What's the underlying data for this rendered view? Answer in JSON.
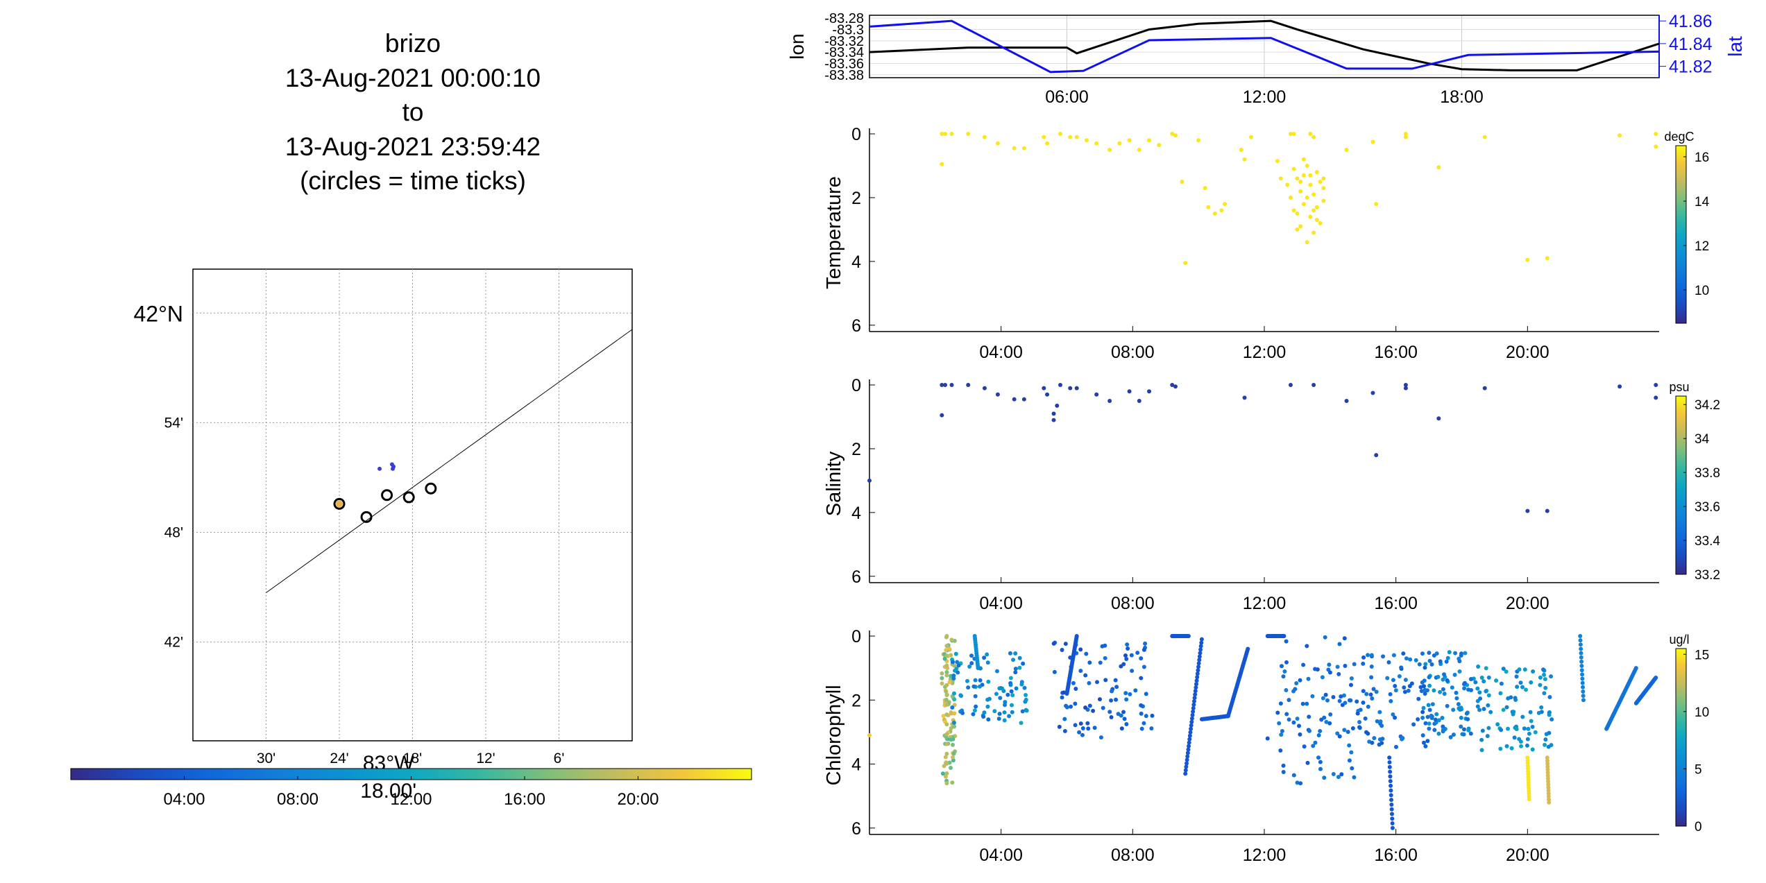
{
  "title_lines": [
    "brizo",
    "13-Aug-2021 00:00:10",
    "to",
    "13-Aug-2021 23:59:42",
    "(circles = time ticks)"
  ],
  "chart_data": [
    {
      "type": "scatter",
      "id": "track_map",
      "lon_ticks": [
        "30'",
        "24'",
        "18'",
        "12'",
        "6'"
      ],
      "lat_ticks": [
        "42°N",
        "54'",
        "48'",
        "42'"
      ],
      "lon_center_label": "83°W",
      "lon_extra_label": "18.00'",
      "track_line": [
        [
          -83.5,
          41.745
        ],
        [
          -83.0,
          41.985
        ]
      ],
      "time_tick_circles": [
        [
          -83.4,
          41.826
        ],
        [
          -83.363,
          41.814
        ],
        [
          -83.335,
          41.834
        ],
        [
          -83.305,
          41.832
        ],
        [
          -83.275,
          41.84
        ]
      ],
      "colored_circle": [
        -83.4,
        41.826
      ],
      "sample_points": [
        [
          -83.345,
          41.858
        ],
        [
          -83.328,
          41.862
        ],
        [
          -83.327,
          41.858
        ],
        [
          -83.326,
          41.86
        ]
      ],
      "xlim": [
        -83.6,
        -83.0
      ],
      "ylim": [
        41.61,
        42.04
      ],
      "colorbar_ticks": [
        "04:00",
        "08:00",
        "12:00",
        "16:00",
        "20:00"
      ]
    },
    {
      "type": "line",
      "id": "lon_lat",
      "ylabel_left": "lon",
      "ylabel_right": "lat",
      "left_ticks": [
        "-83.28",
        "-83.3",
        "-83.32",
        "-83.34",
        "-83.36",
        "-83.38"
      ],
      "right_ticks": [
        "41.86",
        "41.84",
        "41.82"
      ],
      "x_ticks": [
        "06:00",
        "12:00",
        "18:00"
      ],
      "xlim": [
        0,
        24
      ],
      "ylim_left": [
        -83.385,
        -83.275
      ],
      "ylim_right": [
        41.81,
        41.865
      ],
      "series": [
        {
          "name": "lon",
          "color": "#000000",
          "x": [
            0,
            3,
            6,
            6.3,
            8.5,
            10,
            12.2,
            13,
            15,
            17,
            18,
            19.5,
            21.5,
            24
          ],
          "y": [
            -83.34,
            -83.332,
            -83.332,
            -83.342,
            -83.3,
            -83.29,
            -83.285,
            -83.3,
            -83.335,
            -83.36,
            -83.37,
            -83.372,
            -83.372,
            -83.325
          ]
        },
        {
          "name": "lat",
          "color": "#1010ee",
          "x": [
            0,
            2.5,
            5.5,
            6.5,
            8.5,
            12.2,
            14.5,
            16.5,
            18.2,
            24
          ],
          "y": [
            41.855,
            41.86,
            41.815,
            41.816,
            41.843,
            41.845,
            41.818,
            41.818,
            41.83,
            41.833
          ]
        }
      ]
    },
    {
      "type": "scatter",
      "id": "temperature",
      "ylabel": "Temperature",
      "colorbar_unit": "degC",
      "colorbar_ticks": [
        "16",
        "14",
        "12",
        "10"
      ],
      "clim": [
        8.5,
        16.5
      ],
      "y_ticks": [
        "0",
        "2",
        "4",
        "6"
      ],
      "x_ticks": [
        "04:00",
        "08:00",
        "12:00",
        "16:00",
        "20:00"
      ],
      "xlim": [
        0,
        24
      ],
      "ylim": [
        6.2,
        0
      ],
      "points": [
        [
          2.2,
          0.0
        ],
        [
          2.3,
          0.0
        ],
        [
          2.5,
          0.0
        ],
        [
          2.2,
          0.95
        ],
        [
          3.0,
          0.0
        ],
        [
          3.5,
          0.1
        ],
        [
          3.9,
          0.3
        ],
        [
          4.4,
          0.45
        ],
        [
          4.7,
          0.45
        ],
        [
          5.3,
          0.1
        ],
        [
          5.4,
          0.3
        ],
        [
          5.8,
          0.0
        ],
        [
          6.1,
          0.1
        ],
        [
          6.3,
          0.1
        ],
        [
          6.6,
          0.2
        ],
        [
          6.9,
          0.3
        ],
        [
          7.3,
          0.5
        ],
        [
          7.6,
          0.3
        ],
        [
          7.9,
          0.2
        ],
        [
          8.2,
          0.5
        ],
        [
          8.5,
          0.2
        ],
        [
          8.8,
          0.35
        ],
        [
          9.2,
          0.0
        ],
        [
          9.3,
          0.05
        ],
        [
          9.5,
          1.5
        ],
        [
          9.6,
          4.05
        ],
        [
          10.0,
          0.2
        ],
        [
          10.2,
          1.7
        ],
        [
          10.3,
          2.3
        ],
        [
          10.5,
          2.5
        ],
        [
          10.7,
          2.4
        ],
        [
          10.8,
          2.2
        ],
        [
          11.3,
          0.5
        ],
        [
          11.4,
          0.8
        ],
        [
          11.6,
          0.1
        ],
        [
          12.4,
          0.85
        ],
        [
          12.5,
          1.4
        ],
        [
          12.8,
          0.0
        ],
        [
          12.9,
          0.0
        ],
        [
          13.4,
          0.0
        ],
        [
          13.5,
          0.1
        ],
        [
          12.7,
          1.6
        ],
        [
          12.8,
          2.0
        ],
        [
          12.9,
          1.1
        ],
        [
          13.0,
          2.5
        ],
        [
          13.0,
          1.4
        ],
        [
          13.1,
          1.8
        ],
        [
          13.1,
          2.9
        ],
        [
          13.2,
          1.3
        ],
        [
          13.2,
          2.2
        ],
        [
          13.3,
          3.4
        ],
        [
          13.3,
          1.0
        ],
        [
          13.4,
          1.6
        ],
        [
          13.4,
          2.6
        ],
        [
          13.5,
          1.9
        ],
        [
          13.5,
          3.1
        ],
        [
          13.6,
          1.2
        ],
        [
          13.6,
          2.3
        ],
        [
          13.7,
          1.5
        ],
        [
          13.7,
          2.8
        ],
        [
          13.8,
          1.7
        ],
        [
          13.8,
          2.1
        ],
        [
          13.2,
          0.8
        ],
        [
          13.0,
          3.0
        ],
        [
          12.9,
          2.4
        ],
        [
          13.3,
          2.0
        ],
        [
          13.5,
          2.4
        ],
        [
          13.6,
          2.7
        ],
        [
          13.8,
          1.4
        ],
        [
          13.1,
          1.5
        ],
        [
          13.4,
          1.3
        ],
        [
          14.5,
          0.5
        ],
        [
          15.3,
          0.25
        ],
        [
          15.4,
          2.2
        ],
        [
          16.3,
          0.0
        ],
        [
          16.3,
          0.1
        ],
        [
          17.3,
          1.05
        ],
        [
          18.7,
          0.1
        ],
        [
          20.0,
          3.95
        ],
        [
          20.6,
          3.9
        ],
        [
          22.8,
          0.05
        ],
        [
          23.9,
          0.0
        ],
        [
          23.9,
          0.4
        ]
      ]
    },
    {
      "type": "scatter",
      "id": "salinity",
      "ylabel": "Salinity",
      "colorbar_unit": "psu",
      "colorbar_ticks": [
        "34.2",
        "34",
        "33.8",
        "33.6",
        "33.4",
        "33.2"
      ],
      "clim": [
        33.2,
        34.25
      ],
      "y_ticks": [
        "0",
        "2",
        "4",
        "6"
      ],
      "x_ticks": [
        "04:00",
        "08:00",
        "12:00",
        "16:00",
        "20:00"
      ],
      "xlim": [
        0,
        24
      ],
      "ylim": [
        6.2,
        0
      ],
      "points": [
        [
          0.0,
          3.0
        ],
        [
          2.2,
          0.0
        ],
        [
          2.2,
          0.95
        ],
        [
          2.3,
          0.0
        ],
        [
          2.5,
          0.0
        ],
        [
          3.0,
          0.0
        ],
        [
          3.5,
          0.1
        ],
        [
          3.9,
          0.3
        ],
        [
          4.4,
          0.45
        ],
        [
          4.7,
          0.45
        ],
        [
          5.3,
          0.1
        ],
        [
          5.4,
          0.3
        ],
        [
          5.6,
          0.9
        ],
        [
          5.6,
          1.1
        ],
        [
          5.7,
          0.65
        ],
        [
          5.8,
          0.0
        ],
        [
          6.1,
          0.1
        ],
        [
          6.3,
          0.1
        ],
        [
          6.9,
          0.3
        ],
        [
          7.3,
          0.5
        ],
        [
          7.9,
          0.2
        ],
        [
          8.2,
          0.5
        ],
        [
          8.5,
          0.2
        ],
        [
          9.2,
          0.0
        ],
        [
          9.3,
          0.05
        ],
        [
          11.4,
          0.4
        ],
        [
          12.8,
          0.0
        ],
        [
          13.5,
          0.0
        ],
        [
          14.5,
          0.5
        ],
        [
          15.3,
          0.25
        ],
        [
          15.4,
          2.2
        ],
        [
          16.3,
          0.0
        ],
        [
          16.3,
          0.1
        ],
        [
          17.3,
          1.05
        ],
        [
          18.7,
          0.1
        ],
        [
          20.0,
          3.95
        ],
        [
          20.6,
          3.95
        ],
        [
          22.8,
          0.05
        ],
        [
          23.9,
          0.0
        ],
        [
          23.9,
          0.4
        ]
      ]
    },
    {
      "type": "scatter",
      "id": "chlorophyll",
      "ylabel": "Chlorophyll",
      "colorbar_unit": "ug/l",
      "colorbar_ticks": [
        "15",
        "10",
        "5",
        "0"
      ],
      "clim": [
        0,
        15.5
      ],
      "y_ticks": [
        "0",
        "2",
        "4",
        "6"
      ],
      "x_ticks": [
        "04:00",
        "08:00",
        "12:00",
        "16:00",
        "20:00"
      ],
      "xlim": [
        0,
        24
      ],
      "ylim": [
        6.2,
        0
      ],
      "clusters": [
        {
          "x": [
            2.2,
            2.6
          ],
          "y": [
            0.0,
            4.6
          ],
          "c": [
            9,
            14
          ]
        },
        {
          "x": [
            2.5,
            4.8
          ],
          "y": [
            0.5,
            2.8
          ],
          "c": [
            3,
            8
          ]
        },
        {
          "x": [
            5.6,
            8.6
          ],
          "y": [
            0.2,
            3.2
          ],
          "c": [
            1.5,
            4
          ]
        },
        {
          "x": [
            12.4,
            14.8
          ],
          "y": [
            0.0,
            4.6
          ],
          "c": [
            2,
            5
          ]
        },
        {
          "x": [
            14.8,
            17.3
          ],
          "y": [
            0.5,
            3.5
          ],
          "c": [
            2,
            5
          ]
        },
        {
          "x": [
            16.8,
            18.5
          ],
          "y": [
            0.5,
            3.2
          ],
          "c": [
            3,
            7
          ]
        },
        {
          "x": [
            18.5,
            20.8
          ],
          "y": [
            1.0,
            3.6
          ],
          "c": [
            4,
            8
          ]
        }
      ],
      "point_columns": [
        {
          "x": [
            2.35,
            2.35
          ],
          "y": [
            0.0,
            4.6
          ],
          "c": 12
        },
        {
          "x": [
            15.8,
            15.9
          ],
          "y": [
            3.8,
            6.0
          ],
          "c": 2
        },
        {
          "x": [
            20.0,
            20.05
          ],
          "y": [
            3.8,
            5.1
          ],
          "c": 15
        },
        {
          "x": [
            20.6,
            20.65
          ],
          "y": [
            3.8,
            5.2
          ],
          "c": 13
        },
        {
          "x": [
            3.2,
            3.3
          ],
          "y": [
            0.0,
            1.0
          ],
          "c": 6
        },
        {
          "x": [
            21.6,
            21.7
          ],
          "y": [
            0.0,
            2.0
          ],
          "c": 5
        }
      ],
      "line_segments": [
        {
          "x": [
            9.6,
            10.1
          ],
          "y": [
            4.3,
            0.1
          ],
          "c": 2
        },
        {
          "x": [
            10.1,
            10.9
          ],
          "y": [
            2.6,
            2.5
          ],
          "c": 2
        },
        {
          "x": [
            10.9,
            11.5
          ],
          "y": [
            2.5,
            0.4
          ],
          "c": 2
        },
        {
          "x": [
            9.2,
            9.7
          ],
          "y": [
            0.0,
            0.0
          ],
          "c": 2
        },
        {
          "x": [
            12.1,
            12.6
          ],
          "y": [
            0.0,
            0.0
          ],
          "c": 2
        },
        {
          "x": [
            22.4,
            23.3
          ],
          "y": [
            2.9,
            1.0
          ],
          "c": 4
        },
        {
          "x": [
            23.3,
            23.9
          ],
          "y": [
            2.1,
            1.3
          ],
          "c": 3
        },
        {
          "x": [
            6.0,
            6.3
          ],
          "y": [
            1.8,
            0.0
          ],
          "c": 2
        }
      ],
      "isolated_points": [
        [
          0.0,
          3.1,
          14
        ],
        [
          12.1,
          3.2,
          2
        ],
        [
          13.1,
          4.6,
          3
        ]
      ]
    }
  ]
}
